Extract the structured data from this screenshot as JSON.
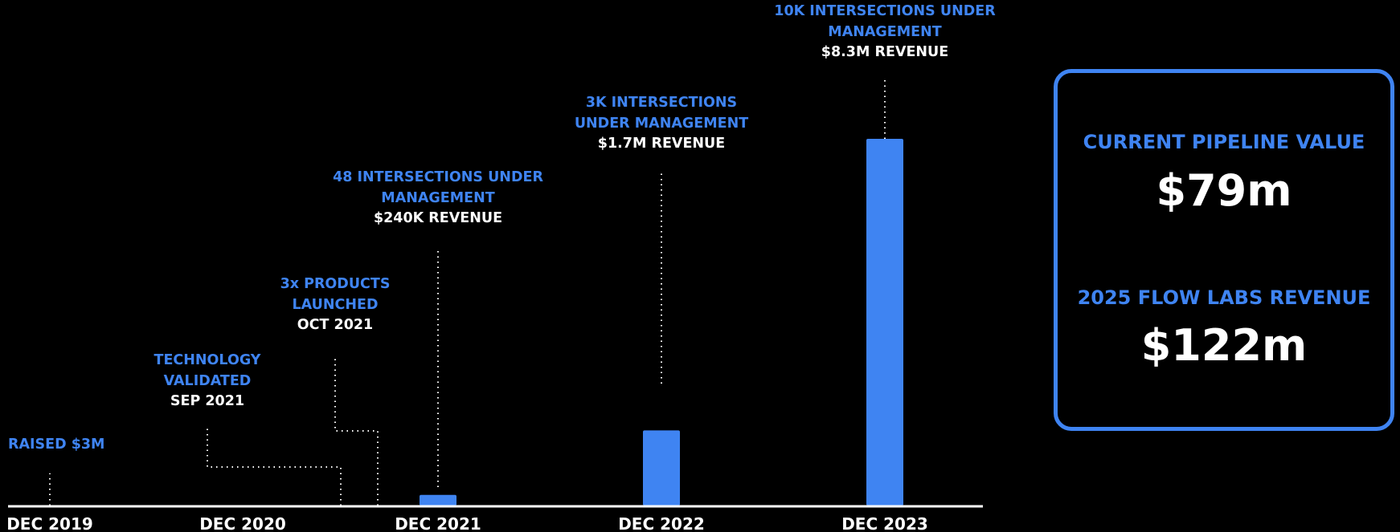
{
  "chart_data": {
    "type": "bar",
    "categories": [
      "DEC 2019",
      "DEC 2020",
      "DEC 2021",
      "DEC 2022",
      "DEC 2023"
    ],
    "values": [
      0,
      0,
      0.24,
      1.7,
      8.3
    ],
    "ylim": [
      0,
      9.3
    ],
    "grid": false,
    "color": "#3f84f2",
    "annotations": [
      {
        "lines": [
          "RAISED $3M"
        ],
        "date": null
      },
      {
        "lines": [
          "TECHNOLOGY",
          "VALIDATED"
        ],
        "date": "SEP 2021"
      },
      {
        "lines": [
          "3x PRODUCTS",
          "LAUNCHED"
        ],
        "date": "OCT 2021"
      },
      {
        "lines": [
          "48 INTERSECTIONS UNDER",
          "MANAGEMENT"
        ],
        "date": "$240K REVENUE"
      },
      {
        "lines": [
          "3K INTERSECTIONS",
          "UNDER MANAGEMENT"
        ],
        "date": "$1.7M REVENUE"
      },
      {
        "lines": [
          "10K INTERSECTIONS UNDER",
          "MANAGEMENT"
        ],
        "date": "$8.3M REVENUE"
      }
    ]
  },
  "kpis": {
    "pipeline_label": "CURRENT PIPELINE VALUE",
    "pipeline_value": "$79m",
    "revenue_label": "2025 FLOW LABS REVENUE",
    "revenue_value": "$122m"
  }
}
